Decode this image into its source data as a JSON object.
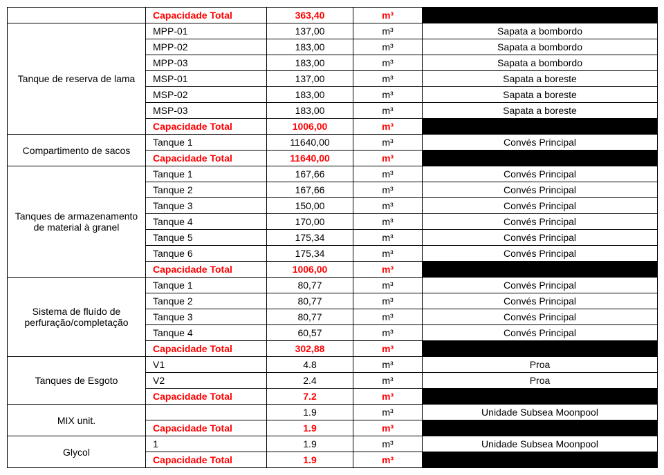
{
  "unit": "m³",
  "colors": {
    "border": "#000000",
    "background": "#ffffff",
    "text": "#000000",
    "highlight_text": "#ff0000",
    "black_fill": "#000000"
  },
  "sections": [
    {
      "left_label": "",
      "capacity_row": {
        "label": "Capacidade Total",
        "value": "363,40"
      },
      "rows": []
    },
    {
      "left_label": "Tanque de reserva de lama",
      "rows": [
        {
          "label": "MPP-01",
          "value": "137,00",
          "note": "Sapata a bombordo"
        },
        {
          "label": "MPP-02",
          "value": "183,00",
          "note": "Sapata a bombordo"
        },
        {
          "label": "MPP-03",
          "value": "183,00",
          "note": "Sapata a bombordo"
        },
        {
          "label": "MSP-01",
          "value": "137,00",
          "note": "Sapata a boreste"
        },
        {
          "label": "MSP-02",
          "value": "183,00",
          "note": "Sapata a boreste"
        },
        {
          "label": "MSP-03",
          "value": "183,00",
          "note": "Sapata a boreste"
        }
      ],
      "capacity_row": {
        "label": "Capacidade Total",
        "value": "1006,00"
      }
    },
    {
      "left_label": "Compartimento de sacos",
      "rows": [
        {
          "label": "Tanque 1",
          "value": "11640,00",
          "note": "Convés Principal"
        }
      ],
      "capacity_row": {
        "label": "Capacidade Total",
        "value": "11640,00"
      }
    },
    {
      "left_label": "Tanques de armazenamento de material à granel",
      "rows": [
        {
          "label": "Tanque 1",
          "value": "167,66",
          "note": "Convés Principal"
        },
        {
          "label": "Tanque 2",
          "value": "167,66",
          "note": "Convés Principal"
        },
        {
          "label": "Tanque 3",
          "value": "150,00",
          "note": "Convés Principal"
        },
        {
          "label": "Tanque 4",
          "value": "170,00",
          "note": "Convés Principal"
        },
        {
          "label": "Tanque 5",
          "value": "175,34",
          "note": "Convés Principal"
        },
        {
          "label": "Tanque 6",
          "value": "175,34",
          "note": "Convés Principal"
        }
      ],
      "capacity_row": {
        "label": "Capacidade Total",
        "value": "1006,00"
      }
    },
    {
      "left_label": "Sistema de fluído de perfuração/completação",
      "rows": [
        {
          "label": "Tanque 1",
          "value": "80,77",
          "note": "Convés Principal"
        },
        {
          "label": "Tanque 2",
          "value": "80,77",
          "note": "Convés Principal"
        },
        {
          "label": "Tanque 3",
          "value": "80,77",
          "note": "Convés Principal"
        },
        {
          "label": "Tanque 4",
          "value": "60,57",
          "note": "Convés Principal"
        }
      ],
      "capacity_row": {
        "label": "Capacidade Total",
        "value": "302,88"
      }
    },
    {
      "left_label": "Tanques de Esgoto",
      "rows": [
        {
          "label": "V1",
          "value": "4.8",
          "note": "Proa"
        },
        {
          "label": "V2",
          "value": "2.4",
          "note": "Proa"
        }
      ],
      "capacity_row": {
        "label": "Capacidade Total",
        "value": "7.2"
      }
    },
    {
      "left_label": "MIX unit.",
      "rows": [
        {
          "label": "",
          "value": "1.9",
          "note": "Unidade Subsea Moonpool"
        }
      ],
      "capacity_row": {
        "label": "Capacidade Total",
        "value": "1.9"
      }
    },
    {
      "left_label": "Glycol",
      "rows": [
        {
          "label": "1",
          "value": "1.9",
          "note": "Unidade Subsea Moonpool"
        }
      ],
      "capacity_row": {
        "label": "Capacidade Total",
        "value": "1.9"
      }
    }
  ]
}
